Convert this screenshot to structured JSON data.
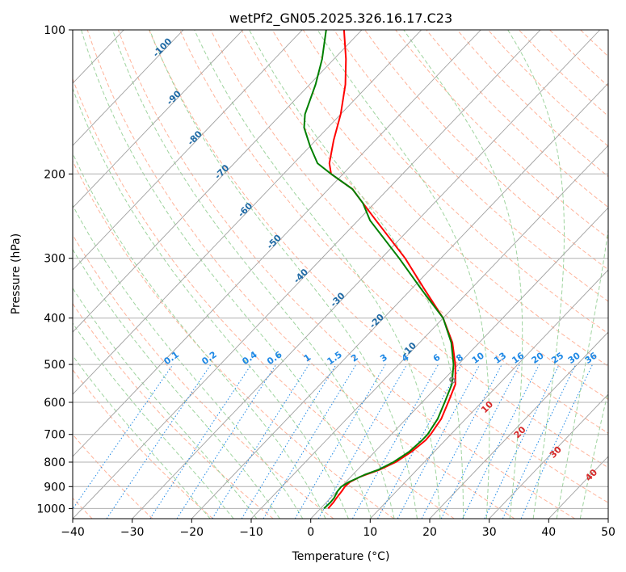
{
  "chart_data": {
    "type": "line",
    "subtype": "skew-t log-p diagram",
    "title": "wetPf2_GN05.2025.326.16.17.C23",
    "xlabel": "Temperature (°C)",
    "ylabel": "Pressure (hPa)",
    "xlim": [
      -40,
      50
    ],
    "ylim": [
      1050,
      100
    ],
    "y_scale": "log",
    "x_ticks": [
      "−40",
      "−30",
      "−20",
      "−10",
      "0",
      "10",
      "20",
      "30",
      "40",
      "50"
    ],
    "y_ticks": [
      "100",
      "200",
      "300",
      "400",
      "500",
      "600",
      "700",
      "800",
      "900",
      "1000"
    ],
    "grid": true,
    "series": [
      {
        "key": "temperature",
        "color": "#ff0000",
        "points": [
          {
            "p": 1000,
            "t": 1.3
          },
          {
            "p": 970,
            "t": 1.2
          },
          {
            "p": 950,
            "t": 1.0
          },
          {
            "p": 920,
            "t": 0.8
          },
          {
            "p": 900,
            "t": 0.6
          },
          {
            "p": 880,
            "t": 0.7
          },
          {
            "p": 860,
            "t": 1.5
          },
          {
            "p": 850,
            "t": 2.2
          },
          {
            "p": 830,
            "t": 3.7
          },
          {
            "p": 800,
            "t": 5.2
          },
          {
            "p": 760,
            "t": 6.2
          },
          {
            "p": 720,
            "t": 6.7
          },
          {
            "p": 700,
            "t": 6.6
          },
          {
            "p": 650,
            "t": 5.9
          },
          {
            "p": 600,
            "t": 4.4
          },
          {
            "p": 550,
            "t": 2.7
          },
          {
            "p": 500,
            "t": -0.5
          },
          {
            "p": 450,
            "t": -4.5
          },
          {
            "p": 400,
            "t": -10
          },
          {
            "p": 350,
            "t": -17.5
          },
          {
            "p": 300,
            "t": -26
          },
          {
            "p": 250,
            "t": -37
          },
          {
            "p": 230,
            "t": -42
          },
          {
            "p": 215,
            "t": -46
          },
          {
            "p": 200,
            "t": -52
          },
          {
            "p": 190,
            "t": -54
          },
          {
            "p": 170,
            "t": -57
          },
          {
            "p": 150,
            "t": -60
          },
          {
            "p": 130,
            "t": -64
          },
          {
            "p": 115,
            "t": -68
          },
          {
            "p": 100,
            "t": -73
          }
        ]
      },
      {
        "key": "dewpoint",
        "color": "#008000",
        "points": [
          {
            "p": 1000,
            "t": 0.6
          },
          {
            "p": 970,
            "t": 0.7
          },
          {
            "p": 950,
            "t": 0.6
          },
          {
            "p": 920,
            "t": 0.1
          },
          {
            "p": 900,
            "t": 0.0
          },
          {
            "p": 880,
            "t": 0.5
          },
          {
            "p": 860,
            "t": 1.5
          },
          {
            "p": 850,
            "t": 2.0
          },
          {
            "p": 830,
            "t": 3.5
          },
          {
            "p": 800,
            "t": 4.8
          },
          {
            "p": 760,
            "t": 5.8
          },
          {
            "p": 720,
            "t": 6.1
          },
          {
            "p": 700,
            "t": 6.1
          },
          {
            "p": 650,
            "t": 5.3
          },
          {
            "p": 600,
            "t": 3.8
          },
          {
            "p": 550,
            "t": 2.1
          },
          {
            "p": 500,
            "t": -0.8
          },
          {
            "p": 450,
            "t": -4.7
          },
          {
            "p": 400,
            "t": -10
          },
          {
            "p": 350,
            "t": -18
          },
          {
            "p": 300,
            "t": -27
          },
          {
            "p": 250,
            "t": -38
          },
          {
            "p": 230,
            "t": -42
          },
          {
            "p": 215,
            "t": -46
          },
          {
            "p": 200,
            "t": -52
          },
          {
            "p": 190,
            "t": -56
          },
          {
            "p": 175,
            "t": -60
          },
          {
            "p": 160,
            "t": -64
          },
          {
            "p": 150,
            "t": -66
          },
          {
            "p": 130,
            "t": -69
          },
          {
            "p": 115,
            "t": -72
          },
          {
            "p": 100,
            "t": -76
          }
        ]
      }
    ],
    "isotherm_labels": [
      "-100",
      "-90",
      "-80",
      "-70",
      "-60",
      "-50",
      "-40",
      "-30",
      "-20",
      "-10"
    ],
    "mixing_ratio_labels": [
      "0.1",
      "0.2",
      "0.4",
      "0.6",
      "1",
      "1.5",
      "2",
      "3",
      "4",
      "6",
      "8",
      "10",
      "13",
      "16",
      "20",
      "25",
      "30",
      "36"
    ],
    "moist_adiabat_labels": [
      "0",
      "10",
      "20",
      "30",
      "40"
    ],
    "colors": {
      "dry_adiabat": "#ffb39a",
      "moist_adiabat": "#9fd49f",
      "saturation_curve": "#d6c7a8",
      "mixing_ratio": "#1e88e5",
      "isotherm": "#a0a0a0",
      "isotherm_label": "#1f6aa5",
      "moist_label": "#d62728",
      "moist_zero_label": "#808080"
    }
  }
}
